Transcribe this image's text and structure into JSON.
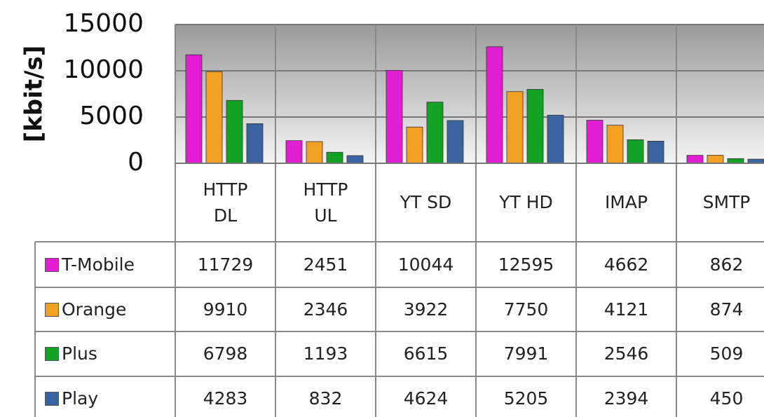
{
  "chart_data": {
    "type": "bar",
    "y_label": "[kbit/s]",
    "categories": [
      "HTTP\nDL",
      "HTTP\nUL",
      "YT SD",
      "YT HD",
      "IMAP",
      "SMTP"
    ],
    "series": [
      {
        "name": "T-Mobile",
        "color": "#e21ed2",
        "values": [
          11729,
          2451,
          10044,
          12595,
          4662,
          862
        ]
      },
      {
        "name": "Orange",
        "color": "#f2a024",
        "values": [
          9910,
          2346,
          3922,
          7750,
          4121,
          874
        ]
      },
      {
        "name": "Plus",
        "color": "#12a324",
        "values": [
          6798,
          1193,
          6615,
          7991,
          2546,
          509
        ]
      },
      {
        "name": "Play",
        "color": "#3a64a0",
        "values": [
          4283,
          832,
          4624,
          5205,
          2394,
          450
        ]
      }
    ],
    "ylim": [
      0,
      15000
    ],
    "yticks": [
      0,
      5000,
      10000,
      15000
    ],
    "grid": true
  }
}
